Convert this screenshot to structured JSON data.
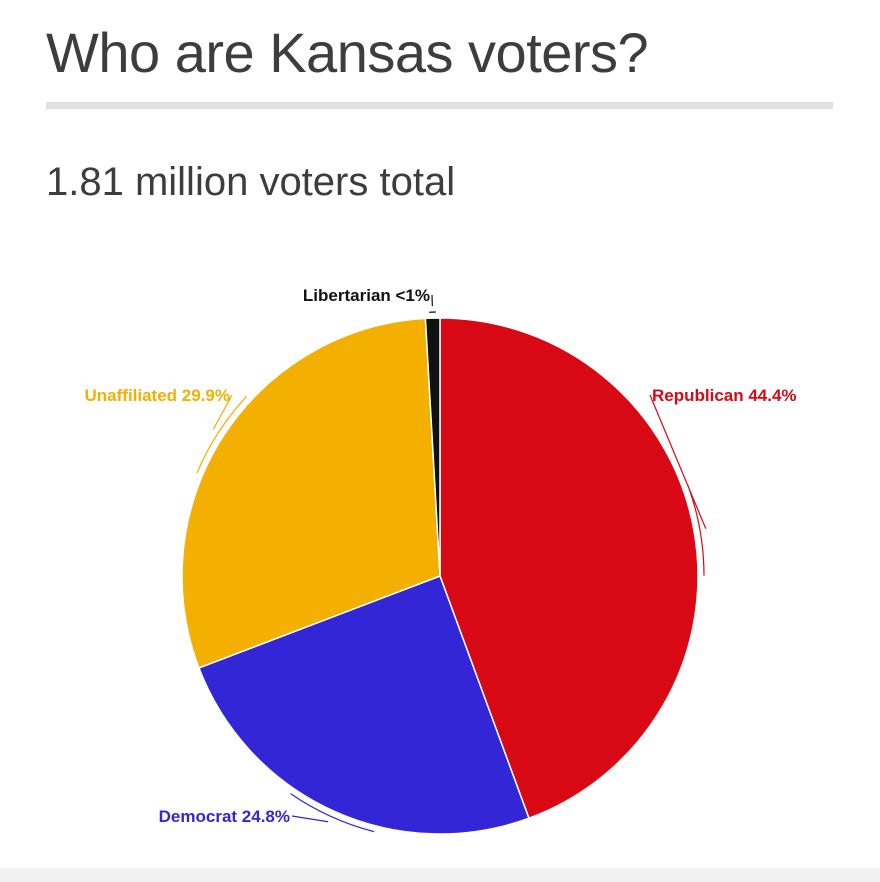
{
  "header": {
    "title": "Who are Kansas voters?",
    "subtitle": "1.81 million voters total"
  },
  "chart_data": {
    "type": "pie",
    "slices": [
      {
        "label": "Republican 44.4%",
        "name": "Republican",
        "value": 44.4,
        "color": "#d80814"
      },
      {
        "label": "Democrat 24.8%",
        "name": "Democrat",
        "value": 24.8,
        "color": "#3326d6"
      },
      {
        "label": "Unaffiliated 29.9%",
        "name": "Unaffiliated",
        "value": 29.9,
        "color": "#f4b000"
      },
      {
        "label": "Libertarian <1%",
        "name": "Libertarian",
        "value": 0.9,
        "color": "#111111"
      }
    ],
    "label_colors": {
      "Republican": "#d80814",
      "Democrat": "#3326d6",
      "Unaffiliated": "#f4b000",
      "Libertarian": "#111111"
    }
  }
}
